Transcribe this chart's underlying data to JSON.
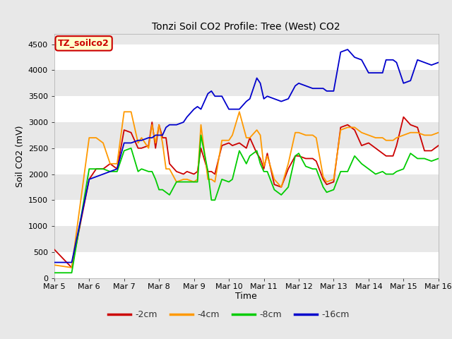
{
  "title": "Tonzi Soil CO2 Profile: Tree (West) CO2",
  "ylabel": "Soil CO2 (mV)",
  "xlabel": "Time",
  "ylim": [
    0,
    4700
  ],
  "yticks": [
    0,
    500,
    1000,
    1500,
    2000,
    2500,
    3000,
    3500,
    4000,
    4500
  ],
  "fig_bg_color": "#e8e8e8",
  "plot_bg_color": "#e8e8e8",
  "legend_area_bg": "#ffffff",
  "grid_color": "#ffffff",
  "band_color_dark": "#d8d8d8",
  "band_color_light": "#e8e8e8",
  "legend_label": "TZ_soilco2",
  "legend_box_color": "#ffffcc",
  "legend_border_color": "#cc0000",
  "colors": {
    "-2cm": "#cc0000",
    "-4cm": "#ff9900",
    "-8cm": "#00cc00",
    "-16cm": "#0000cc"
  },
  "series_labels": [
    "-2cm",
    "-4cm",
    "-8cm",
    "-16cm"
  ],
  "xtick_labels": [
    "Mar 5",
    "Mar 6",
    "Mar 7",
    "Mar 8",
    "Mar 9",
    "Mar 10",
    "Mar 11",
    "Mar 12",
    "Mar 13",
    "Mar 14",
    "Mar 15",
    "Mar 16"
  ],
  "data_2cm": [
    [
      0,
      550
    ],
    [
      0.5,
      200
    ],
    [
      1.0,
      1900
    ],
    [
      1.2,
      2100
    ],
    [
      1.4,
      2100
    ],
    [
      1.6,
      2200
    ],
    [
      1.8,
      2100
    ],
    [
      2.0,
      2850
    ],
    [
      2.2,
      2800
    ],
    [
      2.4,
      2500
    ],
    [
      2.5,
      2500
    ],
    [
      2.7,
      2550
    ],
    [
      2.8,
      3000
    ],
    [
      2.9,
      2500
    ],
    [
      3.0,
      2950
    ],
    [
      3.1,
      2700
    ],
    [
      3.2,
      2700
    ],
    [
      3.3,
      2200
    ],
    [
      3.5,
      2050
    ],
    [
      3.7,
      2000
    ],
    [
      3.8,
      2050
    ],
    [
      4.0,
      2000
    ],
    [
      4.1,
      2050
    ],
    [
      4.2,
      2500
    ],
    [
      4.4,
      2050
    ],
    [
      4.5,
      2050
    ],
    [
      4.6,
      2000
    ],
    [
      4.8,
      2550
    ],
    [
      5.0,
      2600
    ],
    [
      5.1,
      2550
    ],
    [
      5.3,
      2600
    ],
    [
      5.5,
      2500
    ],
    [
      5.6,
      2700
    ],
    [
      5.8,
      2400
    ],
    [
      5.9,
      2300
    ],
    [
      6.0,
      2100
    ],
    [
      6.1,
      2400
    ],
    [
      6.3,
      1800
    ],
    [
      6.5,
      1750
    ],
    [
      6.7,
      2100
    ],
    [
      6.9,
      2350
    ],
    [
      7.0,
      2350
    ],
    [
      7.2,
      2300
    ],
    [
      7.4,
      2300
    ],
    [
      7.5,
      2250
    ],
    [
      7.7,
      1900
    ],
    [
      7.8,
      1800
    ],
    [
      8.0,
      1850
    ],
    [
      8.2,
      2900
    ],
    [
      8.4,
      2950
    ],
    [
      8.6,
      2850
    ],
    [
      8.8,
      2550
    ],
    [
      9.0,
      2600
    ],
    [
      9.2,
      2500
    ],
    [
      9.4,
      2400
    ],
    [
      9.5,
      2350
    ],
    [
      9.7,
      2350
    ],
    [
      9.8,
      2550
    ],
    [
      10.0,
      3100
    ],
    [
      10.2,
      2950
    ],
    [
      10.4,
      2900
    ],
    [
      10.6,
      2450
    ],
    [
      10.8,
      2450
    ],
    [
      11.0,
      2550
    ]
  ],
  "data_4cm": [
    [
      0,
      250
    ],
    [
      0.5,
      200
    ],
    [
      1.0,
      2700
    ],
    [
      1.2,
      2700
    ],
    [
      1.4,
      2600
    ],
    [
      1.6,
      2200
    ],
    [
      1.8,
      2200
    ],
    [
      2.0,
      3200
    ],
    [
      2.2,
      3200
    ],
    [
      2.4,
      2600
    ],
    [
      2.5,
      2700
    ],
    [
      2.7,
      2500
    ],
    [
      2.8,
      2950
    ],
    [
      2.9,
      2600
    ],
    [
      3.0,
      2950
    ],
    [
      3.1,
      2600
    ],
    [
      3.2,
      2100
    ],
    [
      3.3,
      2100
    ],
    [
      3.5,
      1850
    ],
    [
      3.7,
      1900
    ],
    [
      3.8,
      1900
    ],
    [
      4.0,
      1850
    ],
    [
      4.1,
      1900
    ],
    [
      4.2,
      2950
    ],
    [
      4.4,
      1900
    ],
    [
      4.5,
      1900
    ],
    [
      4.6,
      1850
    ],
    [
      4.8,
      2650
    ],
    [
      5.0,
      2650
    ],
    [
      5.1,
      2750
    ],
    [
      5.3,
      3200
    ],
    [
      5.5,
      2700
    ],
    [
      5.6,
      2700
    ],
    [
      5.8,
      2850
    ],
    [
      5.9,
      2750
    ],
    [
      6.0,
      2150
    ],
    [
      6.1,
      2350
    ],
    [
      6.3,
      1900
    ],
    [
      6.5,
      1750
    ],
    [
      6.7,
      2200
    ],
    [
      6.9,
      2800
    ],
    [
      7.0,
      2800
    ],
    [
      7.2,
      2750
    ],
    [
      7.4,
      2750
    ],
    [
      7.5,
      2700
    ],
    [
      7.7,
      1950
    ],
    [
      7.8,
      1850
    ],
    [
      8.0,
      1900
    ],
    [
      8.2,
      2850
    ],
    [
      8.4,
      2900
    ],
    [
      8.6,
      2900
    ],
    [
      8.8,
      2800
    ],
    [
      9.0,
      2750
    ],
    [
      9.2,
      2700
    ],
    [
      9.4,
      2700
    ],
    [
      9.5,
      2650
    ],
    [
      9.7,
      2650
    ],
    [
      9.8,
      2700
    ],
    [
      10.0,
      2750
    ],
    [
      10.2,
      2800
    ],
    [
      10.4,
      2800
    ],
    [
      10.6,
      2750
    ],
    [
      10.8,
      2750
    ],
    [
      11.0,
      2800
    ]
  ],
  "data_8cm": [
    [
      0,
      100
    ],
    [
      0.5,
      100
    ],
    [
      1.0,
      2100
    ],
    [
      1.2,
      2100
    ],
    [
      1.4,
      2100
    ],
    [
      1.6,
      2050
    ],
    [
      1.8,
      2050
    ],
    [
      2.0,
      2450
    ],
    [
      2.2,
      2500
    ],
    [
      2.4,
      2050
    ],
    [
      2.5,
      2100
    ],
    [
      2.7,
      2050
    ],
    [
      2.8,
      2050
    ],
    [
      2.9,
      1900
    ],
    [
      3.0,
      1700
    ],
    [
      3.1,
      1700
    ],
    [
      3.2,
      1650
    ],
    [
      3.3,
      1600
    ],
    [
      3.5,
      1850
    ],
    [
      3.7,
      1850
    ],
    [
      3.8,
      1850
    ],
    [
      4.0,
      1850
    ],
    [
      4.1,
      1850
    ],
    [
      4.2,
      2750
    ],
    [
      4.4,
      2050
    ],
    [
      4.5,
      1500
    ],
    [
      4.6,
      1500
    ],
    [
      4.8,
      1900
    ],
    [
      5.0,
      1850
    ],
    [
      5.1,
      1900
    ],
    [
      5.3,
      2450
    ],
    [
      5.5,
      2200
    ],
    [
      5.6,
      2350
    ],
    [
      5.8,
      2450
    ],
    [
      5.9,
      2200
    ],
    [
      6.0,
      2050
    ],
    [
      6.1,
      2050
    ],
    [
      6.3,
      1700
    ],
    [
      6.5,
      1600
    ],
    [
      6.7,
      1750
    ],
    [
      6.9,
      2350
    ],
    [
      7.0,
      2400
    ],
    [
      7.2,
      2150
    ],
    [
      7.4,
      2100
    ],
    [
      7.5,
      2100
    ],
    [
      7.7,
      1750
    ],
    [
      7.8,
      1650
    ],
    [
      8.0,
      1700
    ],
    [
      8.2,
      2050
    ],
    [
      8.4,
      2050
    ],
    [
      8.6,
      2350
    ],
    [
      8.8,
      2200
    ],
    [
      9.0,
      2100
    ],
    [
      9.2,
      2000
    ],
    [
      9.4,
      2050
    ],
    [
      9.5,
      2000
    ],
    [
      9.7,
      2000
    ],
    [
      9.8,
      2050
    ],
    [
      10.0,
      2100
    ],
    [
      10.2,
      2400
    ],
    [
      10.4,
      2300
    ],
    [
      10.6,
      2300
    ],
    [
      10.8,
      2250
    ],
    [
      11.0,
      2300
    ]
  ],
  "data_16cm": [
    [
      0,
      300
    ],
    [
      0.5,
      300
    ],
    [
      1.0,
      1900
    ],
    [
      1.2,
      1950
    ],
    [
      1.4,
      2000
    ],
    [
      1.6,
      2050
    ],
    [
      1.8,
      2100
    ],
    [
      2.0,
      2600
    ],
    [
      2.2,
      2600
    ],
    [
      2.4,
      2650
    ],
    [
      2.5,
      2650
    ],
    [
      2.7,
      2700
    ],
    [
      2.8,
      2700
    ],
    [
      2.9,
      2750
    ],
    [
      3.0,
      2750
    ],
    [
      3.1,
      2750
    ],
    [
      3.2,
      2900
    ],
    [
      3.3,
      2950
    ],
    [
      3.5,
      2950
    ],
    [
      3.7,
      3000
    ],
    [
      3.8,
      3100
    ],
    [
      4.0,
      3250
    ],
    [
      4.1,
      3300
    ],
    [
      4.2,
      3250
    ],
    [
      4.4,
      3550
    ],
    [
      4.5,
      3600
    ],
    [
      4.6,
      3500
    ],
    [
      4.8,
      3500
    ],
    [
      5.0,
      3250
    ],
    [
      5.1,
      3250
    ],
    [
      5.3,
      3250
    ],
    [
      5.5,
      3400
    ],
    [
      5.6,
      3450
    ],
    [
      5.8,
      3850
    ],
    [
      5.9,
      3750
    ],
    [
      6.0,
      3450
    ],
    [
      6.1,
      3500
    ],
    [
      6.3,
      3450
    ],
    [
      6.5,
      3400
    ],
    [
      6.7,
      3450
    ],
    [
      6.9,
      3700
    ],
    [
      7.0,
      3750
    ],
    [
      7.2,
      3700
    ],
    [
      7.4,
      3650
    ],
    [
      7.5,
      3650
    ],
    [
      7.7,
      3650
    ],
    [
      7.8,
      3600
    ],
    [
      8.0,
      3600
    ],
    [
      8.2,
      4350
    ],
    [
      8.4,
      4400
    ],
    [
      8.6,
      4250
    ],
    [
      8.8,
      4200
    ],
    [
      9.0,
      3950
    ],
    [
      9.2,
      3950
    ],
    [
      9.4,
      3950
    ],
    [
      9.5,
      4200
    ],
    [
      9.7,
      4200
    ],
    [
      9.8,
      4150
    ],
    [
      10.0,
      3750
    ],
    [
      10.2,
      3800
    ],
    [
      10.4,
      4200
    ],
    [
      10.6,
      4150
    ],
    [
      10.8,
      4100
    ],
    [
      11.0,
      4150
    ]
  ]
}
